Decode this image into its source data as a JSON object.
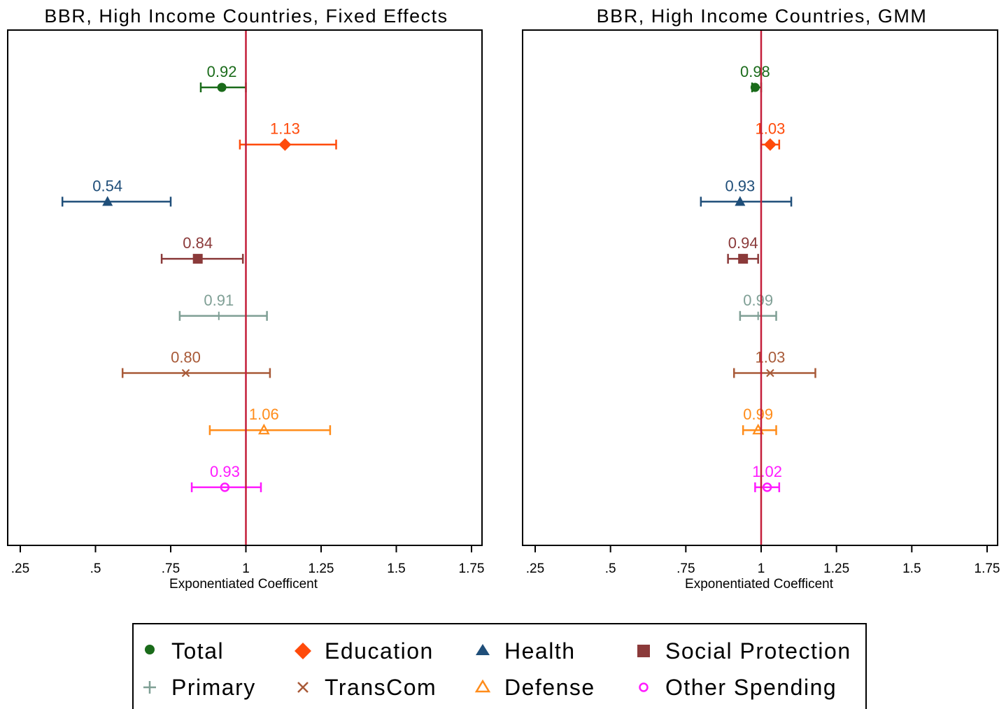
{
  "colors": {
    "Total": "#1a6b1a",
    "Education": "#ff4a0a",
    "Health": "#1f4e79",
    "Social Protection": "#8b3a3a",
    "Primary": "#7f9f95",
    "TransCom": "#a85a38",
    "Defense": "#ff8c1a",
    "Other Spending": "#ff1aff",
    "reference_line": "#c41e3a"
  },
  "legend": {
    "items": [
      {
        "name": "Total",
        "marker": "circle"
      },
      {
        "name": "Education",
        "marker": "diamond"
      },
      {
        "name": "Health",
        "marker": "triangle"
      },
      {
        "name": "Social Protection",
        "marker": "square"
      },
      {
        "name": "Primary",
        "marker": "plus"
      },
      {
        "name": "TransCom",
        "marker": "x"
      },
      {
        "name": "Defense",
        "marker": "triangle-hollow"
      },
      {
        "name": "Other Spending",
        "marker": "circle-hollow"
      }
    ],
    "placement": "bottom-center"
  },
  "chart_data": [
    {
      "type": "scatter",
      "subtype": "coefficient-plot-horizontal-ci",
      "title": "BBR, High Income Countries, Fixed Effects",
      "xlabel": "Exponentiated Coefficent",
      "xlim": [
        0.2,
        1.8
      ],
      "xticks": [
        0.25,
        0.5,
        0.75,
        1,
        1.25,
        1.5,
        1.75
      ],
      "xtick_labels": [
        ".25",
        ".5",
        ".75",
        "1",
        "1.25",
        "1.5",
        "1.75"
      ],
      "reference_line": 1,
      "grid": false,
      "series": [
        {
          "name": "Total",
          "value": 0.92,
          "ci": [
            0.85,
            1.0
          ],
          "label": "0.92"
        },
        {
          "name": "Education",
          "value": 1.13,
          "ci": [
            0.98,
            1.3
          ],
          "label": "1.13"
        },
        {
          "name": "Health",
          "value": 0.54,
          "ci": [
            0.39,
            0.75
          ],
          "label": "0.54"
        },
        {
          "name": "Social Protection",
          "value": 0.84,
          "ci": [
            0.72,
            0.99
          ],
          "label": "0.84"
        },
        {
          "name": "Primary",
          "value": 0.91,
          "ci": [
            0.78,
            1.07
          ],
          "label": "0.91"
        },
        {
          "name": "TransCom",
          "value": 0.8,
          "ci": [
            0.59,
            1.08
          ],
          "label": "0.80"
        },
        {
          "name": "Defense",
          "value": 1.06,
          "ci": [
            0.88,
            1.28
          ],
          "label": "1.06"
        },
        {
          "name": "Other Spending",
          "value": 0.93,
          "ci": [
            0.82,
            1.05
          ],
          "label": "0.93"
        }
      ]
    },
    {
      "type": "scatter",
      "subtype": "coefficient-plot-horizontal-ci",
      "title": "BBR, High Income Countries, GMM",
      "xlabel": "Exponentiated Coefficent",
      "xlim": [
        0.2,
        1.8
      ],
      "xticks": [
        0.25,
        0.5,
        0.75,
        1,
        1.25,
        1.5,
        1.75
      ],
      "xtick_labels": [
        ".25",
        ".5",
        ".75",
        "1",
        "1.25",
        "1.5",
        "1.75"
      ],
      "reference_line": 1,
      "grid": false,
      "series": [
        {
          "name": "Total",
          "value": 0.98,
          "ci": [
            0.97,
            1.0
          ],
          "label": "0.98"
        },
        {
          "name": "Education",
          "value": 1.03,
          "ci": [
            1.0,
            1.06
          ],
          "label": "1.03"
        },
        {
          "name": "Health",
          "value": 0.93,
          "ci": [
            0.8,
            1.1
          ],
          "label": "0.93"
        },
        {
          "name": "Social Protection",
          "value": 0.94,
          "ci": [
            0.89,
            0.99
          ],
          "label": "0.94"
        },
        {
          "name": "Primary",
          "value": 0.99,
          "ci": [
            0.93,
            1.05
          ],
          "label": "0.99"
        },
        {
          "name": "TransCom",
          "value": 1.03,
          "ci": [
            0.91,
            1.18
          ],
          "label": "1.03"
        },
        {
          "name": "Defense",
          "value": 0.99,
          "ci": [
            0.94,
            1.05
          ],
          "label": "0.99"
        },
        {
          "name": "Other Spending",
          "value": 1.02,
          "ci": [
            0.98,
            1.06
          ],
          "label": "1.02"
        }
      ]
    }
  ]
}
